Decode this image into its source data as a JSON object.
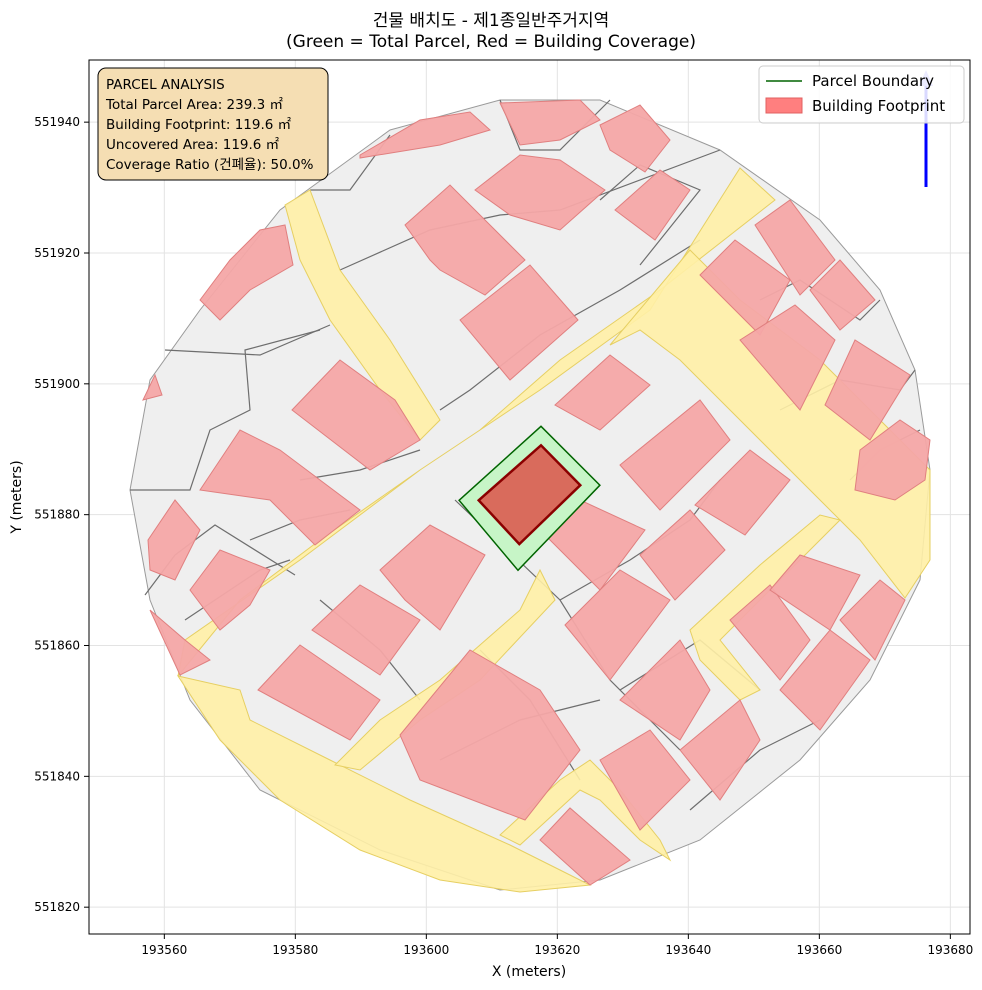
{
  "title": {
    "line1": "건물 배치도 - 제1종일반주거지역",
    "line2": "(Green = Total Parcel, Red = Building Coverage)"
  },
  "axes": {
    "xlabel": "X (meters)",
    "ylabel": "Y (meters)",
    "xlim": [
      193548.5,
      193683.0
    ],
    "ylim": [
      551815.9,
      551949.5
    ],
    "xticks": [
      "193560",
      "193580",
      "193600",
      "193620",
      "193640",
      "193660",
      "193680"
    ],
    "yticks": [
      "551820",
      "551840",
      "551860",
      "551880",
      "551900",
      "551920",
      "551940"
    ],
    "grid": true
  },
  "info_box": {
    "title": "PARCEL ANALYSIS",
    "lines": [
      "Total Parcel Area: 239.3 ㎡",
      "Building Footprint: 119.6 ㎡",
      "Uncovered Area: 119.6 ㎡",
      "Coverage Ratio (건폐율): 50.0%"
    ]
  },
  "legend": {
    "placement": "top-right",
    "items": [
      {
        "label": "Parcel Boundary",
        "color": "#006400",
        "kind": "line"
      },
      {
        "label": "Building Footprint",
        "color": "#ff7f7f",
        "kind": "patch"
      }
    ]
  },
  "colors": {
    "parcel_fill": "#c7f5c7",
    "parcel_edge": "#006400",
    "building_fill": "#d96b5c",
    "building_edge": "#8b0000",
    "road": "#fff0a6",
    "road_edge": "#e6cf62",
    "block": "#efefef",
    "block_edge": "#6e6e6e",
    "nearby_building": "#f4a6a6",
    "nearby_building_edge": "#e07f7f",
    "north_arrow": "#0000ff"
  },
  "north_arrow_icon": "north-arrow-icon",
  "chart_data": {
    "type": "map",
    "target_parcel": [
      [
        193605.0,
        551882.2
      ],
      [
        193617.5,
        551893.5
      ],
      [
        193626.5,
        551884.5
      ],
      [
        193614.0,
        551871.5
      ]
    ],
    "target_building": [
      [
        193608.0,
        551882.2
      ],
      [
        193617.5,
        551890.6
      ],
      [
        193623.5,
        551884.5
      ],
      [
        193614.2,
        551875.5
      ]
    ]
  }
}
